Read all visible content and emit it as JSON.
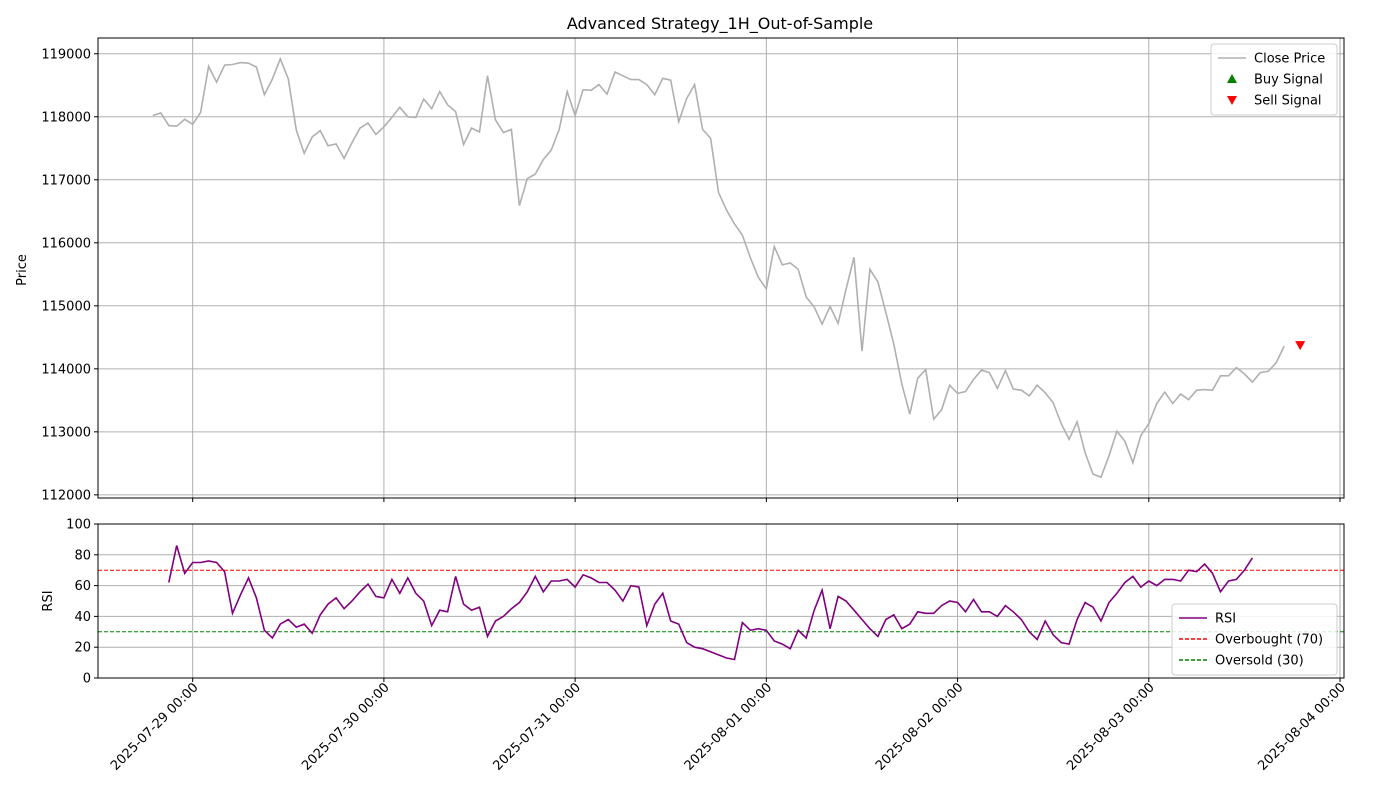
{
  "chart_data": [
    {
      "type": "line",
      "title": "Advanced Strategy_1H_Out-of-Sample",
      "ylabel": "Price",
      "xlabel": "",
      "ylim": [
        111950,
        119250
      ],
      "yticks": [
        112000,
        113000,
        114000,
        115000,
        116000,
        117000,
        118000,
        119000
      ],
      "grid": true,
      "legend_position": "top-right",
      "series": [
        {
          "name": "Close Price",
          "color": "#b0b0b0",
          "start_hour": 19,
          "values": [
            118020,
            118060,
            117860,
            117850,
            117960,
            117880,
            118070,
            118800,
            118550,
            118820,
            118830,
            118860,
            118850,
            118790,
            118350,
            118600,
            118920,
            118600,
            117790,
            117420,
            117680,
            117780,
            117540,
            117570,
            117340,
            117590,
            117820,
            117900,
            117720,
            117840,
            117990,
            118150,
            118000,
            117990,
            118280,
            118130,
            118400,
            118190,
            118080,
            117560,
            117820,
            117760,
            118650,
            117950,
            117750,
            117800,
            116590,
            117020,
            117090,
            117320,
            117470,
            117800,
            118400,
            118020,
            118430,
            118420,
            118510,
            118360,
            118710,
            118650,
            118590,
            118590,
            118510,
            118350,
            118610,
            118580,
            117920,
            118290,
            118510,
            117800,
            117660,
            116800,
            116520,
            116300,
            116120,
            115760,
            115450,
            115270,
            115940,
            115650,
            115680,
            115580,
            115140,
            114980,
            114710,
            114990,
            114720,
            115260,
            115770,
            114280,
            115580,
            115380,
            114890,
            114390,
            113760,
            113280,
            113850,
            113990,
            113200,
            113350,
            113740,
            113610,
            113640,
            113830,
            113980,
            113940,
            113690,
            113970,
            113680,
            113660,
            113570,
            113740,
            113620,
            113460,
            113130,
            112880,
            113160,
            112670,
            112330,
            112280,
            112620,
            113010,
            112850,
            112510,
            112940,
            113130,
            113450,
            113630,
            113450,
            113600,
            113510,
            113660,
            113670,
            113660,
            113890,
            113890,
            114020,
            113920,
            113790,
            113940,
            113960,
            114100,
            114360
          ]
        },
        {
          "name": "Buy Signal",
          "color": "#008000",
          "marker": "triangle-up",
          "points": []
        },
        {
          "name": "Sell Signal",
          "color": "#ff0000",
          "marker": "triangle-down",
          "points": [
            {
              "x": "2025-08-03 19:00",
              "y": 114360
            }
          ]
        }
      ]
    },
    {
      "type": "line",
      "ylabel": "RSI",
      "xlabel": "",
      "ylim": [
        0,
        100
      ],
      "yticks": [
        0,
        20,
        40,
        60,
        80,
        100
      ],
      "grid": true,
      "legend_position": "bottom-right",
      "series": [
        {
          "name": "RSI",
          "color": "#800080",
          "start_hour": 21,
          "values": [
            62,
            86,
            68,
            75,
            75,
            76,
            75,
            69,
            42,
            54,
            65,
            52,
            31,
            26,
            35,
            38,
            33,
            35,
            29,
            41,
            48,
            52,
            45,
            50,
            56,
            61,
            53,
            52,
            64,
            55,
            65,
            55,
            50,
            34,
            44,
            43,
            66,
            48,
            44,
            46,
            27,
            37,
            40,
            45,
            49,
            56,
            66,
            56,
            63,
            63,
            64,
            59,
            67,
            65,
            62,
            62,
            57,
            50,
            60,
            59,
            34,
            48,
            55,
            37,
            35,
            23,
            20,
            19,
            17,
            15,
            13,
            12,
            36,
            31,
            32,
            31,
            24,
            22,
            19,
            31,
            26,
            44,
            57,
            32,
            53,
            50,
            44,
            38,
            32,
            27,
            38,
            41,
            32,
            35,
            43,
            42,
            42,
            47,
            50,
            49,
            43,
            51,
            43,
            43,
            40,
            47,
            43,
            38,
            30,
            25,
            37,
            28,
            23,
            22,
            38,
            49,
            46,
            37,
            49,
            55,
            62,
            66,
            59,
            63,
            60,
            64,
            64,
            63,
            70,
            69,
            74,
            68,
            56,
            63,
            64,
            70,
            78
          ]
        },
        {
          "name": "Overbought (70)",
          "color": "#ff0000",
          "style": "dashed",
          "constant": 70
        },
        {
          "name": "Oversold (30)",
          "color": "#008000",
          "style": "dashed",
          "constant": 30
        }
      ]
    }
  ],
  "x_axis": {
    "type": "datetime",
    "tick_labels": [
      "2025-07-29 00:00",
      "2025-07-30 00:00",
      "2025-07-31 00:00",
      "2025-08-01 00:00",
      "2025-08-02 00:00",
      "2025-08-03 00:00",
      "2025-08-04 00:00"
    ],
    "xlim": [
      "2025-07-28 12:07",
      "2025-08-04 00:30"
    ],
    "series_start": "2025-07-28 19:00",
    "step_hours": 1
  }
}
